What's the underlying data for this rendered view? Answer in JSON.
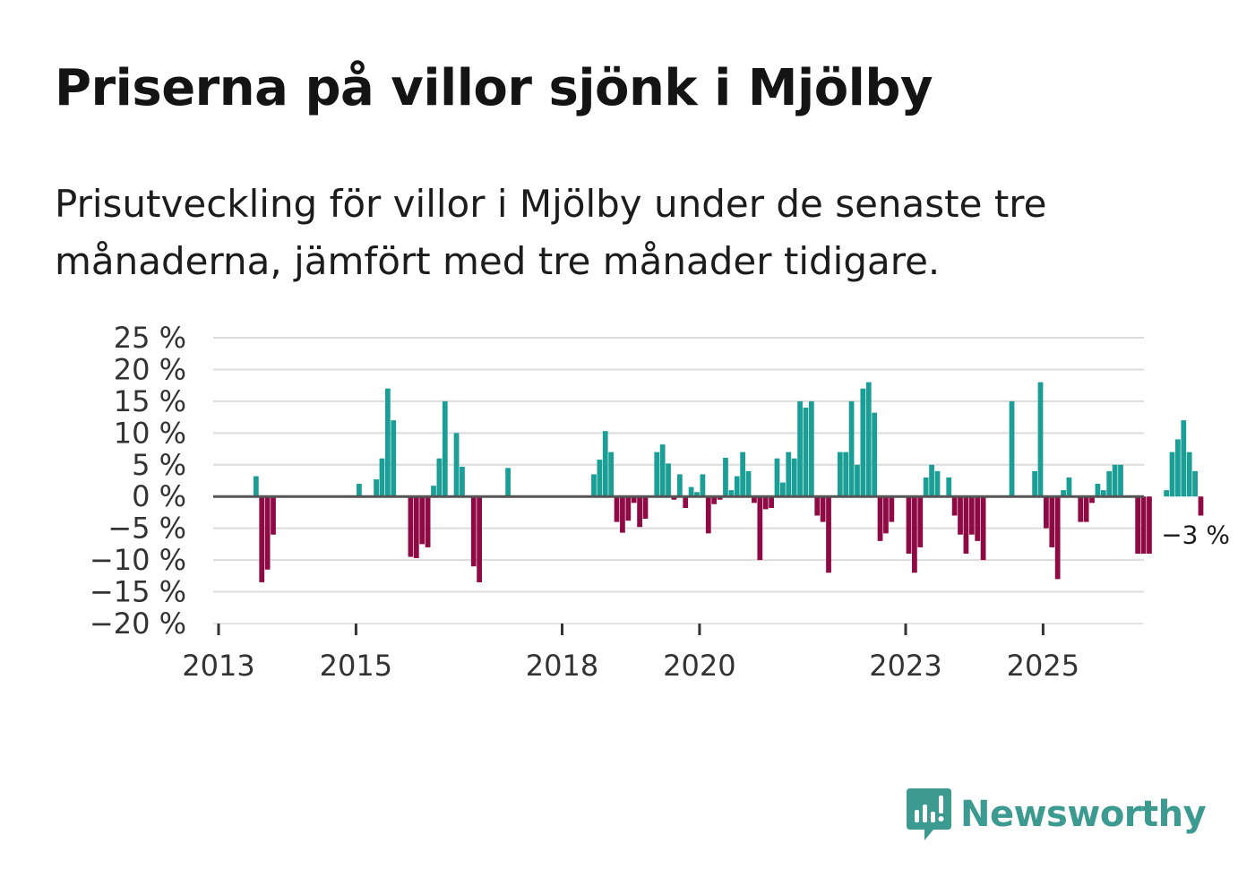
{
  "title": "Priserna på villor sjönk i Mjölby",
  "subtitle": "Prisutveckling för villor i Mjölby under de senaste tre månaderna, jämfört med tre månader tidigare.",
  "brand": {
    "name": "Newsworthy",
    "color": "#3c9a91"
  },
  "colors": {
    "positive": "#1a9e96",
    "negative": "#8e0a45",
    "grid": "#dcdcdc",
    "zero_line": "#555555"
  },
  "chart_data": {
    "type": "bar",
    "title": "Priserna på villor sjönk i Mjölby",
    "xlabel": "",
    "ylabel": "",
    "x_start": 2013.0,
    "x_range": [
      2013.0,
      2026.5
    ],
    "bar_width_years": 0.075,
    "ylim": [
      -20,
      25
    ],
    "yticks": [
      25,
      20,
      15,
      10,
      5,
      0,
      -5,
      -10,
      -15,
      -20
    ],
    "ytick_labels": [
      "25 %",
      "20 %",
      "15 %",
      "10 %",
      "5 %",
      "0 %",
      "−5 %",
      "−10 %",
      "−15 %",
      "−20 %"
    ],
    "xticks": [
      2013,
      2015,
      2018,
      2020,
      2023,
      2025
    ],
    "xtick_labels": [
      "2013",
      "2015",
      "2018",
      "2020",
      "2023",
      "2025"
    ],
    "annotation": "−3 %",
    "grid": true,
    "values": [
      null,
      null,
      null,
      null,
      null,
      null,
      3.2,
      -13.5,
      -11.5,
      -6,
      null,
      null,
      null,
      null,
      null,
      null,
      null,
      null,
      null,
      null,
      null,
      null,
      null,
      null,
      2,
      null,
      null,
      2.7,
      6,
      17,
      12,
      null,
      null,
      -9.5,
      -9.7,
      -7.5,
      -8,
      1.7,
      6,
      15,
      null,
      10,
      4.7,
      null,
      -11,
      -13.5,
      null,
      null,
      null,
      null,
      4.5,
      null,
      null,
      null,
      null,
      null,
      null,
      null,
      null,
      null,
      null,
      null,
      null,
      null,
      null,
      3.5,
      5.8,
      10.3,
      7,
      -4,
      -5.7,
      -3.8,
      -1,
      -4.8,
      -3.5,
      null,
      7,
      8.2,
      5.2,
      -0.5,
      3.5,
      -1.8,
      1.5,
      0.7,
      3.5,
      -5.8,
      -1.2,
      -0.5,
      6.1,
      1,
      3.2,
      7,
      4,
      -1,
      -10,
      -2,
      -1.8,
      6,
      2.2,
      7,
      6,
      15,
      14,
      15,
      -3,
      -4,
      -12,
      null,
      7,
      7,
      15,
      5,
      17,
      18,
      13.2,
      -7,
      -5.8,
      -4,
      null,
      null,
      -9,
      -12,
      -8,
      3,
      5,
      4,
      null,
      3,
      -3,
      -6,
      -9,
      -6,
      -7,
      -10,
      null,
      null,
      null,
      null,
      15,
      null,
      null,
      null,
      4,
      18,
      -5,
      -8,
      -13,
      1,
      3,
      null,
      -4,
      -4,
      -1,
      2,
      1,
      4,
      5,
      5,
      null,
      null,
      -9,
      -9,
      -9,
      null,
      null,
      1,
      7,
      9,
      12,
      7,
      4,
      -3
    ]
  }
}
